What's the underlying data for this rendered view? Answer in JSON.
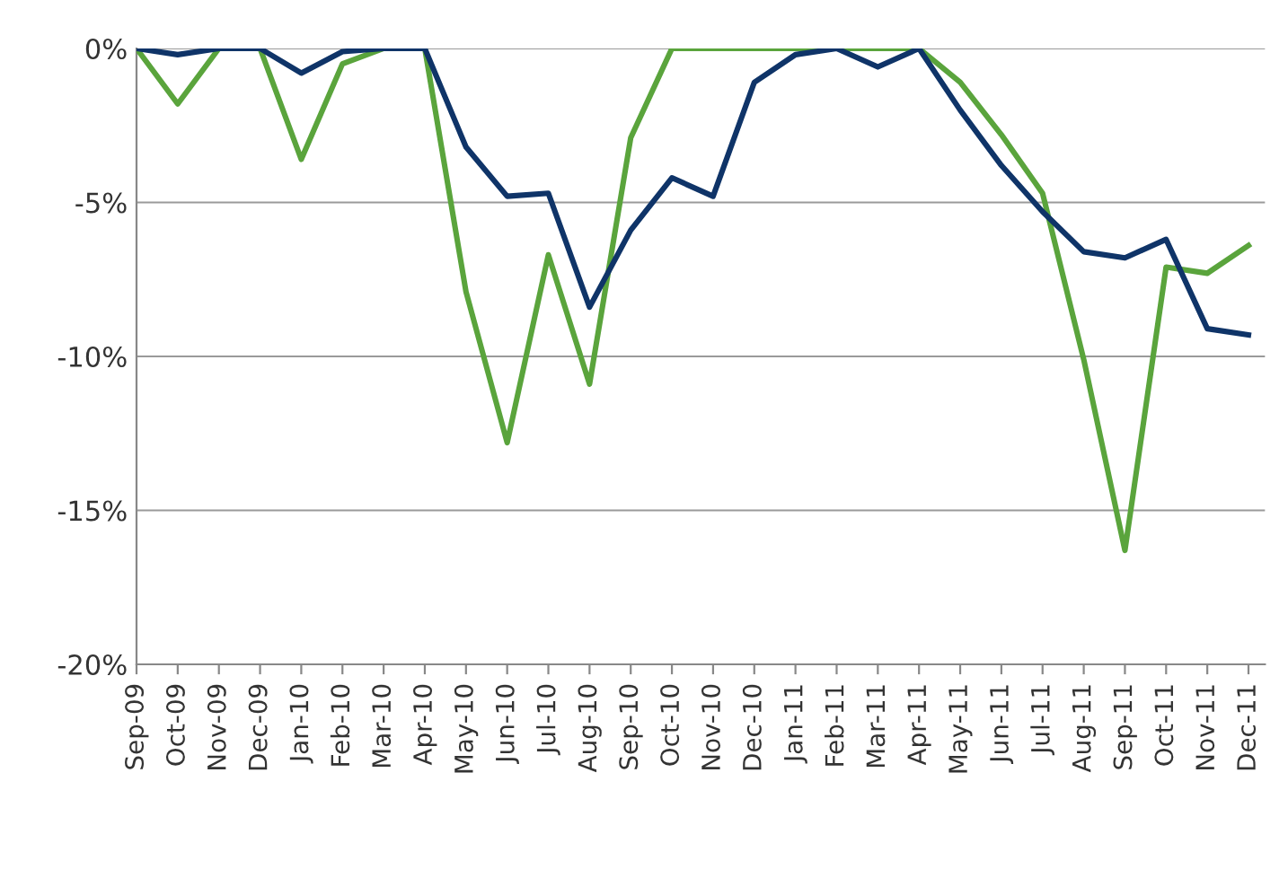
{
  "chart_data": {
    "type": "line",
    "categories": [
      "Sep-09",
      "Oct-09",
      "Nov-09",
      "Dec-09",
      "Jan-10",
      "Feb-10",
      "Mar-10",
      "Apr-10",
      "May-10",
      "Jun-10",
      "Jul-10",
      "Aug-10",
      "Sep-10",
      "Oct-10",
      "Nov-10",
      "Dec-10",
      "Jan-11",
      "Feb-11",
      "Mar-11",
      "Apr-11",
      "May-11",
      "Jun-11",
      "Jul-11",
      "Aug-11",
      "Sep-11",
      "Oct-11",
      "Nov-11",
      "Dec-11"
    ],
    "series": [
      {
        "color": "#0f3468",
        "values": [
          0,
          -0.2,
          0,
          0,
          -0.8,
          -0.1,
          0,
          0,
          -3.2,
          -4.8,
          -4.7,
          -8.4,
          -5.9,
          -4.2,
          -4.8,
          -1.1,
          -0.2,
          0,
          -0.6,
          0,
          -2.0,
          -3.8,
          -5.3,
          -6.6,
          -6.8,
          -6.2,
          -9.1,
          -9.3
        ]
      },
      {
        "color": "#5aa43c",
        "values": [
          0,
          -1.8,
          0,
          0,
          -3.6,
          -0.5,
          0,
          0,
          -7.9,
          -12.8,
          -6.7,
          -10.9,
          -2.9,
          0,
          0,
          0,
          0,
          0,
          0,
          0,
          -1.1,
          -2.8,
          -4.7,
          -10.1,
          -16.3,
          -7.1,
          -7.3,
          -6.4
        ]
      }
    ],
    "ylim": [
      -20,
      0
    ],
    "yticks": [
      {
        "value": -20,
        "label": "-20%"
      },
      {
        "value": -15,
        "label": "-15%"
      },
      {
        "value": -10,
        "label": "-10%"
      },
      {
        "value": -5,
        "label": "-5%"
      },
      {
        "value": 0,
        "label": "0%"
      }
    ],
    "grid": "y",
    "marker": "none",
    "line_style": "solid"
  }
}
